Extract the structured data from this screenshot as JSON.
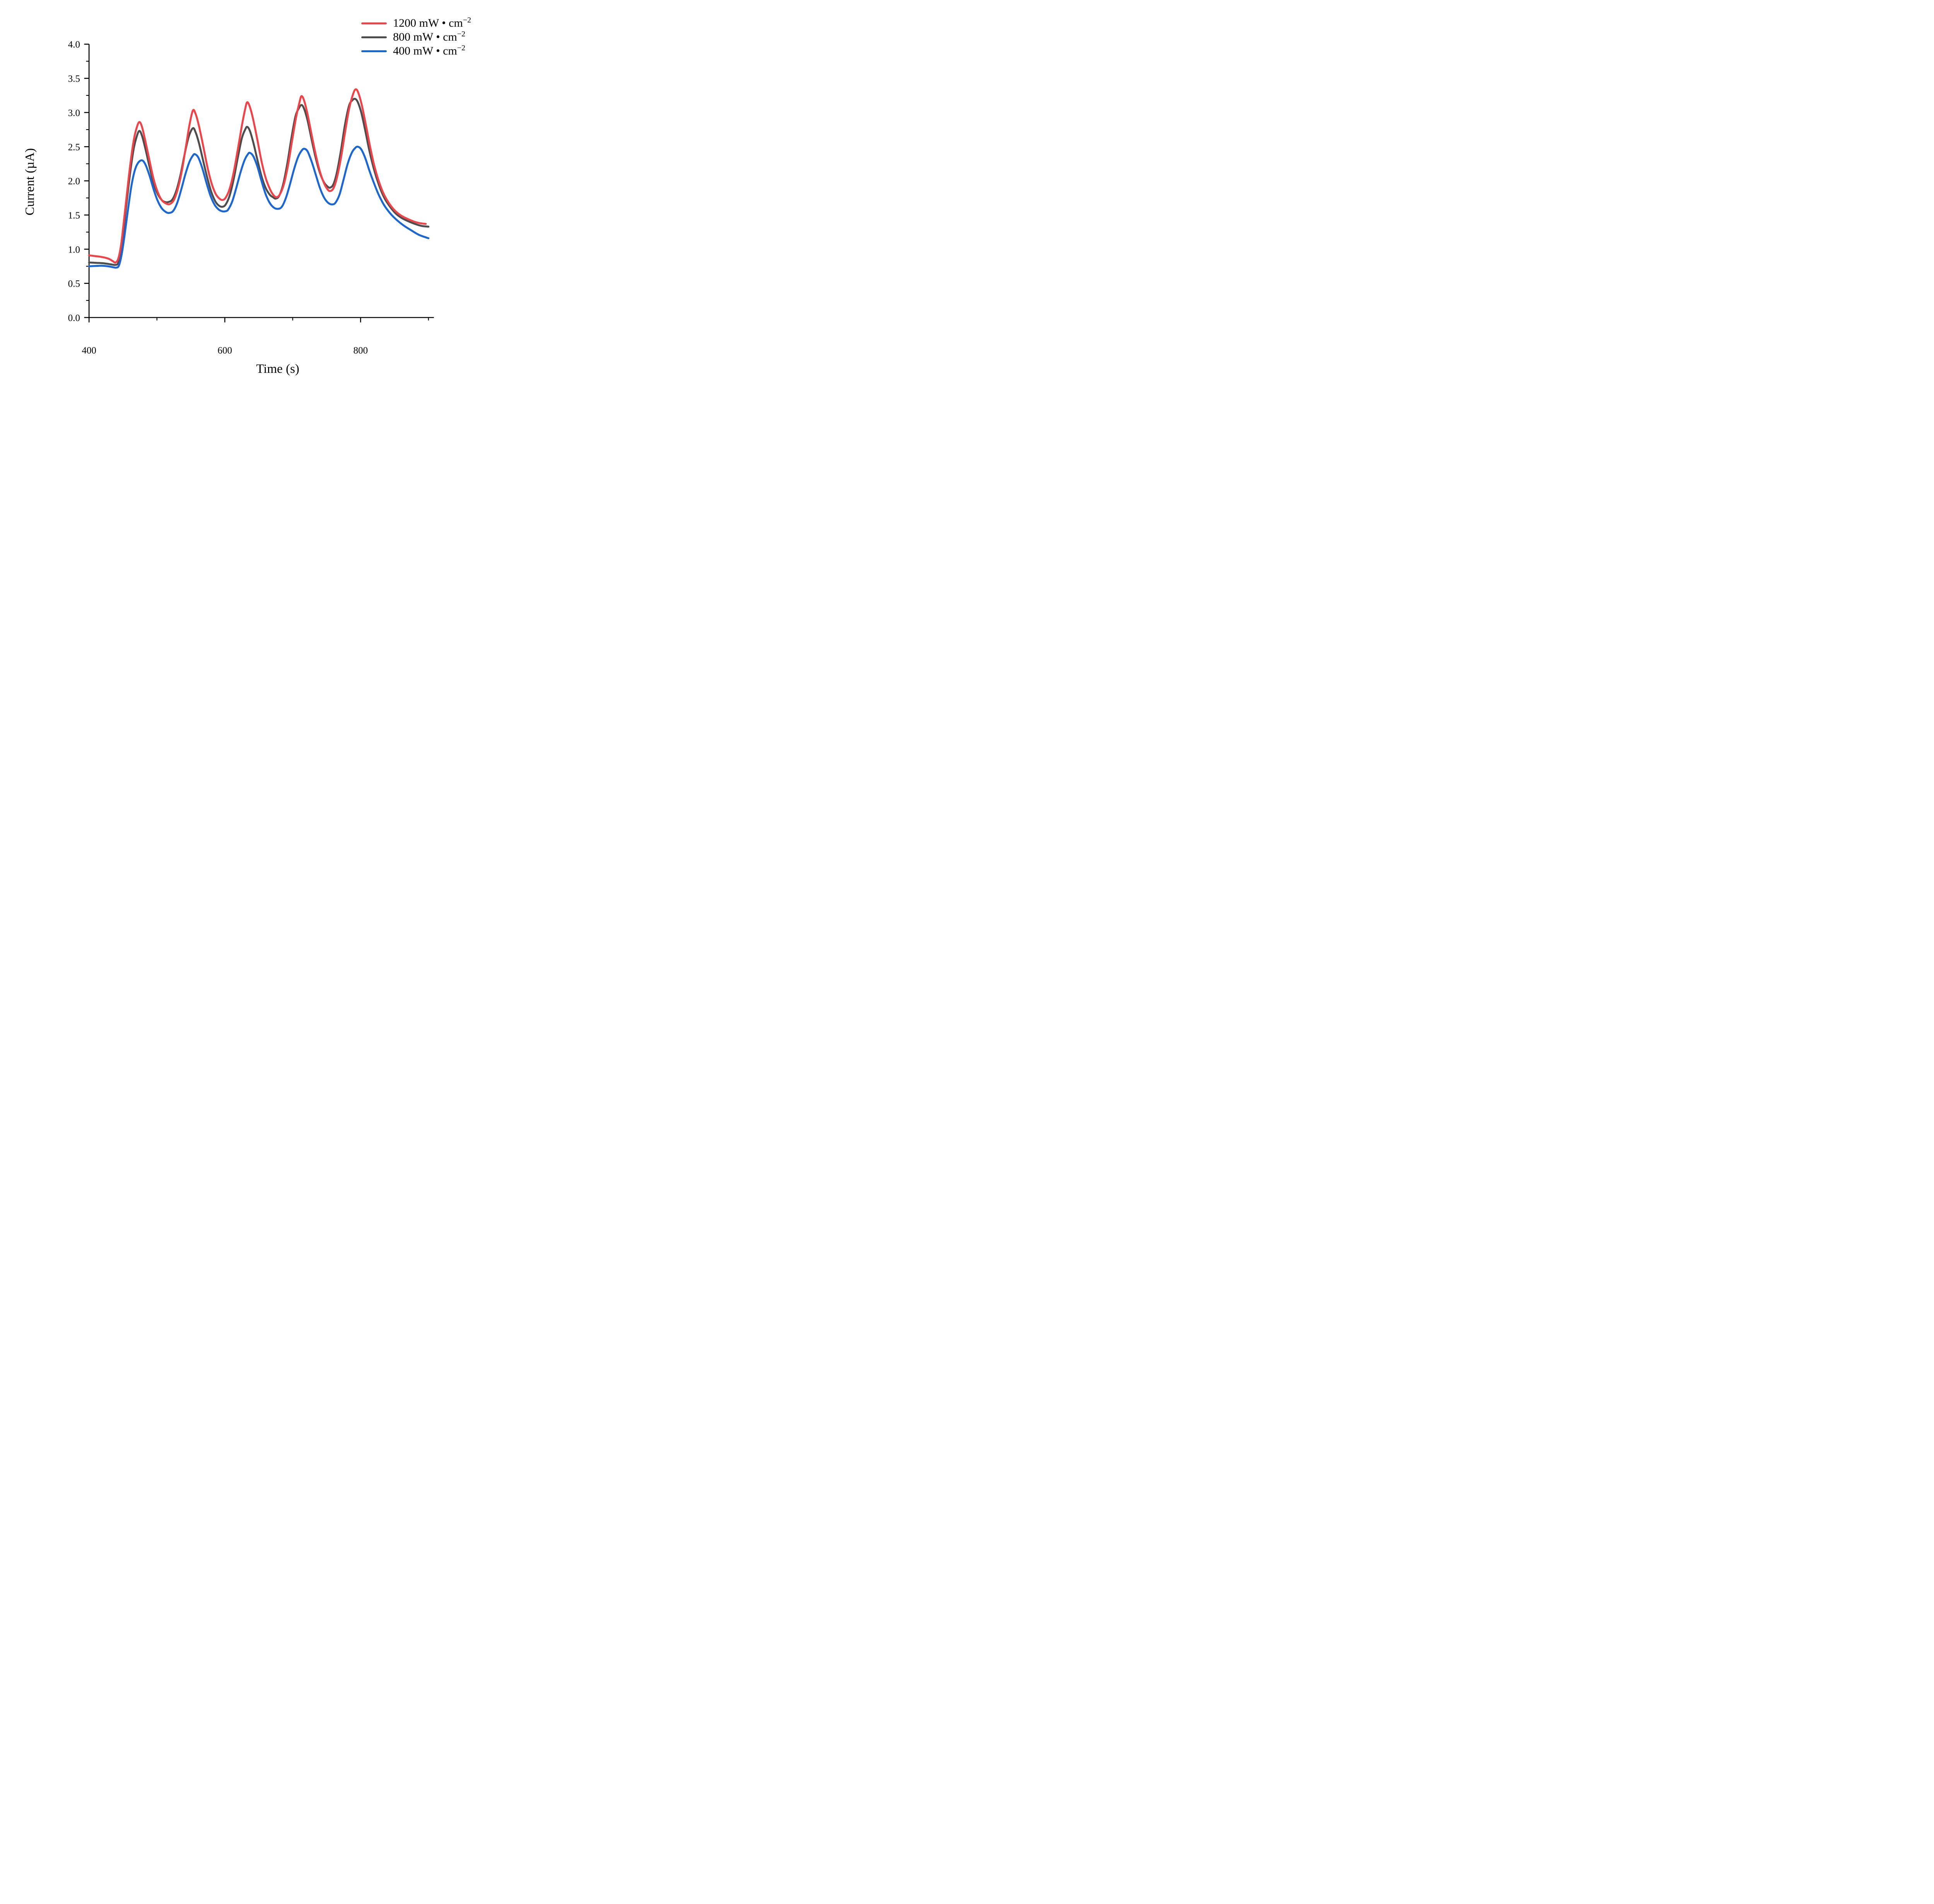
{
  "chart_data": {
    "type": "line",
    "title": "",
    "xlabel": "Time (s)",
    "ylabel": "Current (µA)",
    "grid": false,
    "legend_position": "top-right",
    "x_axis": {
      "range": [
        400,
        908
      ],
      "major_ticks": [
        400,
        600,
        800
      ],
      "major_tick_labels": [
        "400",
        "600",
        "800"
      ],
      "minor_ticks": [
        500,
        700,
        900
      ]
    },
    "y_axis": {
      "range": [
        0,
        4
      ],
      "major_ticks": [
        0,
        0.5,
        1,
        1.5,
        2,
        2.5,
        3,
        3.5,
        4
      ],
      "major_tick_labels": [
        "0.0",
        "0.5",
        "1.0",
        "1.5",
        "2.0",
        "2.5",
        "3.0",
        "3.5",
        "4.0"
      ],
      "minor_ticks": [
        0.25,
        0.75,
        1.25,
        1.75,
        2.25,
        2.75,
        3.25,
        3.75
      ]
    },
    "series": [
      {
        "name": "1200 mW·cm⁻²",
        "label_base": "1200 mW • cm",
        "label_exp": "−2",
        "color": "#F14248",
        "points": [
          [
            400,
            0.91
          ],
          [
            408,
            0.9
          ],
          [
            416,
            0.89
          ],
          [
            424,
            0.875
          ],
          [
            430,
            0.855
          ],
          [
            435,
            0.825
          ],
          [
            439,
            0.805
          ],
          [
            443,
            0.86
          ],
          [
            447,
            1.05
          ],
          [
            451,
            1.38
          ],
          [
            456,
            1.83
          ],
          [
            461,
            2.26
          ],
          [
            466,
            2.6
          ],
          [
            470,
            2.77
          ],
          [
            474,
            2.86
          ],
          [
            478,
            2.79
          ],
          [
            483,
            2.58
          ],
          [
            489,
            2.3
          ],
          [
            495,
            2.03
          ],
          [
            501,
            1.84
          ],
          [
            507,
            1.72
          ],
          [
            513,
            1.67
          ],
          [
            519,
            1.66
          ],
          [
            525,
            1.72
          ],
          [
            531,
            1.89
          ],
          [
            537,
            2.16
          ],
          [
            543,
            2.52
          ],
          [
            548,
            2.82
          ],
          [
            553,
            3.03
          ],
          [
            557,
            2.98
          ],
          [
            562,
            2.8
          ],
          [
            568,
            2.52
          ],
          [
            574,
            2.22
          ],
          [
            580,
            1.98
          ],
          [
            586,
            1.82
          ],
          [
            591,
            1.75
          ],
          [
            596,
            1.72
          ],
          [
            601,
            1.75
          ],
          [
            607,
            1.88
          ],
          [
            613,
            2.12
          ],
          [
            619,
            2.45
          ],
          [
            625,
            2.8
          ],
          [
            630,
            3.05
          ],
          [
            633,
            3.15
          ],
          [
            637,
            3.08
          ],
          [
            642,
            2.89
          ],
          [
            648,
            2.6
          ],
          [
            654,
            2.29
          ],
          [
            660,
            2.05
          ],
          [
            666,
            1.89
          ],
          [
            671,
            1.8
          ],
          [
            676,
            1.76
          ],
          [
            681,
            1.8
          ],
          [
            687,
            1.95
          ],
          [
            693,
            2.22
          ],
          [
            699,
            2.58
          ],
          [
            705,
            2.93
          ],
          [
            710,
            3.15
          ],
          [
            713,
            3.24
          ],
          [
            717,
            3.17
          ],
          [
            722,
            2.97
          ],
          [
            728,
            2.67
          ],
          [
            734,
            2.38
          ],
          [
            740,
            2.14
          ],
          [
            746,
            1.97
          ],
          [
            751,
            1.88
          ],
          [
            755,
            1.85
          ],
          [
            760,
            1.89
          ],
          [
            765,
            2.04
          ],
          [
            771,
            2.33
          ],
          [
            777,
            2.7
          ],
          [
            783,
            3.05
          ],
          [
            789,
            3.27
          ],
          [
            793,
            3.34
          ],
          [
            797,
            3.28
          ],
          [
            802,
            3.1
          ],
          [
            808,
            2.81
          ],
          [
            814,
            2.5
          ],
          [
            820,
            2.23
          ],
          [
            827,
            1.99
          ],
          [
            834,
            1.81
          ],
          [
            842,
            1.67
          ],
          [
            851,
            1.56
          ],
          [
            860,
            1.49
          ],
          [
            870,
            1.44
          ],
          [
            880,
            1.4
          ],
          [
            888,
            1.38
          ],
          [
            896,
            1.37
          ]
        ]
      },
      {
        "name": "800 mW·cm⁻²",
        "label_base": "800 mW • cm",
        "label_exp": "−2",
        "color": "#4D4D4D",
        "points": [
          [
            400,
            0.805
          ],
          [
            410,
            0.8
          ],
          [
            420,
            0.795
          ],
          [
            428,
            0.785
          ],
          [
            434,
            0.775
          ],
          [
            439,
            0.77
          ],
          [
            443,
            0.8
          ],
          [
            447,
            0.98
          ],
          [
            451,
            1.3
          ],
          [
            456,
            1.74
          ],
          [
            461,
            2.15
          ],
          [
            466,
            2.48
          ],
          [
            470,
            2.64
          ],
          [
            474,
            2.73
          ],
          [
            478,
            2.66
          ],
          [
            483,
            2.47
          ],
          [
            489,
            2.21
          ],
          [
            495,
            1.97
          ],
          [
            501,
            1.81
          ],
          [
            507,
            1.72
          ],
          [
            512,
            1.69
          ],
          [
            517,
            1.69
          ],
          [
            523,
            1.73
          ],
          [
            529,
            1.87
          ],
          [
            535,
            2.1
          ],
          [
            541,
            2.4
          ],
          [
            547,
            2.65
          ],
          [
            553,
            2.77
          ],
          [
            557,
            2.71
          ],
          [
            562,
            2.55
          ],
          [
            568,
            2.3
          ],
          [
            574,
            2.05
          ],
          [
            580,
            1.84
          ],
          [
            586,
            1.7
          ],
          [
            591,
            1.64
          ],
          [
            596,
            1.62
          ],
          [
            601,
            1.65
          ],
          [
            607,
            1.78
          ],
          [
            613,
            2.02
          ],
          [
            619,
            2.33
          ],
          [
            625,
            2.62
          ],
          [
            630,
            2.75
          ],
          [
            633,
            2.79
          ],
          [
            637,
            2.73
          ],
          [
            642,
            2.56
          ],
          [
            648,
            2.31
          ],
          [
            654,
            2.07
          ],
          [
            660,
            1.9
          ],
          [
            666,
            1.8
          ],
          [
            671,
            1.76
          ],
          [
            675,
            1.74
          ],
          [
            680,
            1.78
          ],
          [
            686,
            1.95
          ],
          [
            692,
            2.25
          ],
          [
            698,
            2.62
          ],
          [
            704,
            2.94
          ],
          [
            709,
            3.06
          ],
          [
            713,
            3.11
          ],
          [
            717,
            3.05
          ],
          [
            722,
            2.88
          ],
          [
            728,
            2.6
          ],
          [
            734,
            2.33
          ],
          [
            740,
            2.12
          ],
          [
            746,
            1.98
          ],
          [
            751,
            1.92
          ],
          [
            755,
            1.9
          ],
          [
            760,
            1.95
          ],
          [
            765,
            2.12
          ],
          [
            771,
            2.44
          ],
          [
            777,
            2.82
          ],
          [
            783,
            3.1
          ],
          [
            788,
            3.18
          ],
          [
            792,
            3.2
          ],
          [
            796,
            3.15
          ],
          [
            801,
            3.0
          ],
          [
            807,
            2.73
          ],
          [
            813,
            2.44
          ],
          [
            820,
            2.16
          ],
          [
            827,
            1.94
          ],
          [
            834,
            1.77
          ],
          [
            842,
            1.64
          ],
          [
            851,
            1.53
          ],
          [
            860,
            1.46
          ],
          [
            870,
            1.41
          ],
          [
            880,
            1.37
          ],
          [
            890,
            1.34
          ],
          [
            900,
            1.33
          ]
        ]
      },
      {
        "name": "400 mW·cm⁻²",
        "label_base": "400 mW • cm",
        "label_exp": "−2",
        "color": "#1A66D4",
        "points": [
          [
            400,
            0.75
          ],
          [
            410,
            0.755
          ],
          [
            420,
            0.757
          ],
          [
            428,
            0.75
          ],
          [
            435,
            0.737
          ],
          [
            440,
            0.73
          ],
          [
            444,
            0.76
          ],
          [
            448,
            0.92
          ],
          [
            452,
            1.18
          ],
          [
            457,
            1.55
          ],
          [
            462,
            1.9
          ],
          [
            467,
            2.14
          ],
          [
            472,
            2.26
          ],
          [
            478,
            2.3
          ],
          [
            483,
            2.24
          ],
          [
            489,
            2.08
          ],
          [
            495,
            1.88
          ],
          [
            501,
            1.71
          ],
          [
            507,
            1.6
          ],
          [
            513,
            1.545
          ],
          [
            518,
            1.53
          ],
          [
            524,
            1.56
          ],
          [
            530,
            1.68
          ],
          [
            536,
            1.88
          ],
          [
            542,
            2.1
          ],
          [
            548,
            2.28
          ],
          [
            553,
            2.37
          ],
          [
            556,
            2.39
          ],
          [
            561,
            2.34
          ],
          [
            567,
            2.18
          ],
          [
            573,
            1.97
          ],
          [
            579,
            1.78
          ],
          [
            585,
            1.65
          ],
          [
            591,
            1.58
          ],
          [
            596,
            1.555
          ],
          [
            601,
            1.555
          ],
          [
            605,
            1.58
          ],
          [
            611,
            1.7
          ],
          [
            617,
            1.9
          ],
          [
            623,
            2.12
          ],
          [
            629,
            2.3
          ],
          [
            634,
            2.39
          ],
          [
            637,
            2.41
          ],
          [
            642,
            2.36
          ],
          [
            648,
            2.21
          ],
          [
            654,
            2.0
          ],
          [
            660,
            1.81
          ],
          [
            666,
            1.68
          ],
          [
            672,
            1.61
          ],
          [
            678,
            1.59
          ],
          [
            684,
            1.62
          ],
          [
            690,
            1.75
          ],
          [
            696,
            1.95
          ],
          [
            702,
            2.17
          ],
          [
            708,
            2.35
          ],
          [
            713,
            2.44
          ],
          [
            717,
            2.47
          ],
          [
            722,
            2.43
          ],
          [
            728,
            2.28
          ],
          [
            734,
            2.09
          ],
          [
            740,
            1.9
          ],
          [
            746,
            1.76
          ],
          [
            752,
            1.68
          ],
          [
            758,
            1.655
          ],
          [
            763,
            1.68
          ],
          [
            769,
            1.8
          ],
          [
            775,
            2.02
          ],
          [
            781,
            2.25
          ],
          [
            787,
            2.41
          ],
          [
            792,
            2.48
          ],
          [
            796,
            2.5
          ],
          [
            801,
            2.46
          ],
          [
            807,
            2.33
          ],
          [
            813,
            2.15
          ],
          [
            820,
            1.96
          ],
          [
            827,
            1.79
          ],
          [
            835,
            1.64
          ],
          [
            844,
            1.52
          ],
          [
            853,
            1.43
          ],
          [
            863,
            1.35
          ],
          [
            874,
            1.28
          ],
          [
            886,
            1.21
          ],
          [
            900,
            1.16
          ]
        ]
      }
    ]
  }
}
